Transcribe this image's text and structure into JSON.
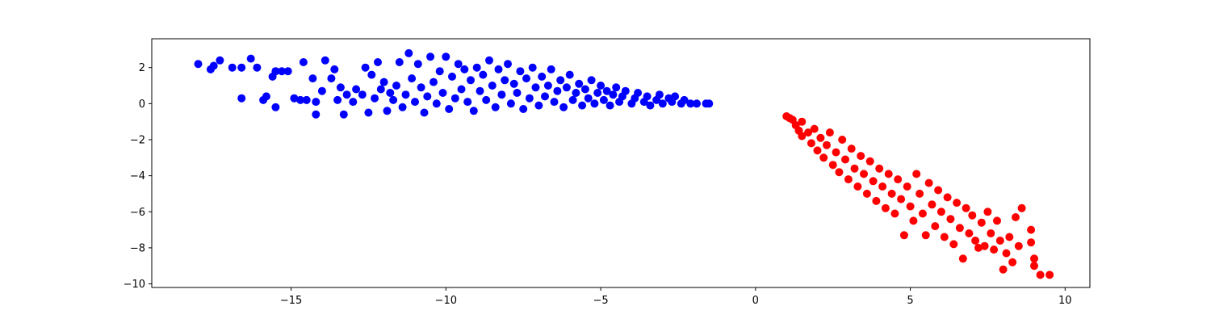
{
  "chart_data": {
    "type": "scatter",
    "title": "",
    "xlabel": "",
    "ylabel": "",
    "xlim": [
      -19.5,
      10.8
    ],
    "ylim": [
      -10.2,
      3.6
    ],
    "xticks": [
      -15,
      -10,
      -5,
      0,
      5,
      10
    ],
    "yticks": [
      2,
      0,
      -2,
      -4,
      -6,
      -8,
      -10
    ],
    "xtick_labels": [
      "−15",
      "−10",
      "−5",
      "0",
      "5",
      "10"
    ],
    "ytick_labels": [
      "2",
      "0",
      "−2",
      "−4",
      "−6",
      "−8",
      "−10"
    ],
    "grid": false,
    "legend": "none",
    "series": [
      {
        "color": "#0000ff",
        "points": [
          [
            -18.0,
            2.2
          ],
          [
            -17.6,
            1.9
          ],
          [
            -17.5,
            2.1
          ],
          [
            -17.3,
            2.4
          ],
          [
            -16.9,
            2.0
          ],
          [
            -16.6,
            2.0
          ],
          [
            -16.6,
            0.3
          ],
          [
            -16.3,
            2.5
          ],
          [
            -16.1,
            2.0
          ],
          [
            -15.9,
            0.2
          ],
          [
            -15.8,
            0.4
          ],
          [
            -15.6,
            1.5
          ],
          [
            -15.5,
            1.8
          ],
          [
            -15.5,
            -0.2
          ],
          [
            -15.3,
            1.8
          ],
          [
            -15.1,
            1.8
          ],
          [
            -14.9,
            0.3
          ],
          [
            -14.7,
            0.2
          ],
          [
            -14.6,
            2.3
          ],
          [
            -14.5,
            0.2
          ],
          [
            -14.3,
            1.4
          ],
          [
            -14.2,
            -0.6
          ],
          [
            -14.2,
            0.1
          ],
          [
            -14.0,
            0.7
          ],
          [
            -13.9,
            2.4
          ],
          [
            -13.7,
            1.4
          ],
          [
            -13.6,
            1.9
          ],
          [
            -13.5,
            0.2
          ],
          [
            -13.4,
            0.9
          ],
          [
            -13.3,
            -0.6
          ],
          [
            -13.2,
            0.5
          ],
          [
            -13.0,
            0.1
          ],
          [
            -12.9,
            0.8
          ],
          [
            -12.7,
            0.5
          ],
          [
            -12.6,
            2.0
          ],
          [
            -12.5,
            -0.5
          ],
          [
            -12.4,
            1.6
          ],
          [
            -12.3,
            0.3
          ],
          [
            -12.2,
            2.3
          ],
          [
            -12.1,
            0.8
          ],
          [
            -12.0,
            1.2
          ],
          [
            -11.9,
            -0.4
          ],
          [
            -11.8,
            0.6
          ],
          [
            -11.7,
            0.2
          ],
          [
            -11.6,
            1.0
          ],
          [
            -11.5,
            2.3
          ],
          [
            -11.4,
            -0.2
          ],
          [
            -11.3,
            0.5
          ],
          [
            -11.2,
            2.8
          ],
          [
            -11.1,
            1.4
          ],
          [
            -11.0,
            0.1
          ],
          [
            -10.9,
            2.2
          ],
          [
            -10.8,
            0.9
          ],
          [
            -10.7,
            -0.5
          ],
          [
            -10.6,
            0.4
          ],
          [
            -10.5,
            2.6
          ],
          [
            -10.4,
            1.2
          ],
          [
            -10.3,
            0.0
          ],
          [
            -10.2,
            1.8
          ],
          [
            -10.1,
            0.6
          ],
          [
            -10.0,
            2.6
          ],
          [
            -9.9,
            -0.3
          ],
          [
            -9.8,
            1.5
          ],
          [
            -9.7,
            0.3
          ],
          [
            -9.6,
            2.2
          ],
          [
            -9.5,
            0.8
          ],
          [
            -9.4,
            1.9
          ],
          [
            -9.3,
            0.1
          ],
          [
            -9.2,
            1.3
          ],
          [
            -9.1,
            -0.4
          ],
          [
            -9.0,
            2.0
          ],
          [
            -8.9,
            0.7
          ],
          [
            -8.8,
            1.6
          ],
          [
            -8.7,
            0.2
          ],
          [
            -8.6,
            2.4
          ],
          [
            -8.5,
            1.0
          ],
          [
            -8.4,
            -0.2
          ],
          [
            -8.3,
            1.9
          ],
          [
            -8.2,
            0.5
          ],
          [
            -8.1,
            1.3
          ],
          [
            -8.0,
            2.2
          ],
          [
            -7.9,
            0.0
          ],
          [
            -7.8,
            1.1
          ],
          [
            -7.7,
            0.6
          ],
          [
            -7.6,
            1.8
          ],
          [
            -7.5,
            -0.3
          ],
          [
            -7.4,
            1.4
          ],
          [
            -7.3,
            0.3
          ],
          [
            -7.2,
            2.0
          ],
          [
            -7.1,
            0.9
          ],
          [
            -7.0,
            -0.1
          ],
          [
            -6.9,
            1.5
          ],
          [
            -6.8,
            0.4
          ],
          [
            -6.7,
            1.0
          ],
          [
            -6.6,
            1.9
          ],
          [
            -6.5,
            0.1
          ],
          [
            -6.4,
            0.7
          ],
          [
            -6.3,
            1.3
          ],
          [
            -6.2,
            -0.2
          ],
          [
            -6.1,
            0.9
          ],
          [
            -6.0,
            1.6
          ],
          [
            -5.9,
            0.2
          ],
          [
            -5.8,
            0.6
          ],
          [
            -5.7,
            1.1
          ],
          [
            -5.6,
            -0.1
          ],
          [
            -5.5,
            0.8
          ],
          [
            -5.4,
            0.3
          ],
          [
            -5.3,
            1.3
          ],
          [
            -5.2,
            0.0
          ],
          [
            -5.1,
            0.6
          ],
          [
            -5.0,
            1.0
          ],
          [
            -4.9,
            0.2
          ],
          [
            -4.8,
            0.7
          ],
          [
            -4.7,
            -0.1
          ],
          [
            -4.6,
            0.5
          ],
          [
            -4.5,
            0.9
          ],
          [
            -4.4,
            0.1
          ],
          [
            -4.3,
            0.4
          ],
          [
            -4.2,
            0.7
          ],
          [
            -4.0,
            0.0
          ],
          [
            -3.9,
            0.3
          ],
          [
            -3.8,
            0.6
          ],
          [
            -3.6,
            0.1
          ],
          [
            -3.5,
            0.4
          ],
          [
            -3.4,
            -0.1
          ],
          [
            -3.2,
            0.2
          ],
          [
            -3.1,
            0.5
          ],
          [
            -3.0,
            0.0
          ],
          [
            -2.8,
            0.3
          ],
          [
            -2.7,
            0.1
          ],
          [
            -2.6,
            0.4
          ],
          [
            -2.4,
            0.0
          ],
          [
            -2.3,
            0.2
          ],
          [
            -2.1,
            0.0
          ],
          [
            -1.9,
            0.0
          ],
          [
            -1.6,
            0.0
          ],
          [
            -1.5,
            0.0
          ]
        ]
      },
      {
        "color": "#ff0000",
        "points": [
          [
            1.0,
            -0.7
          ],
          [
            1.1,
            -0.8
          ],
          [
            1.2,
            -0.9
          ],
          [
            1.3,
            -1.2
          ],
          [
            1.4,
            -1.5
          ],
          [
            1.5,
            -1.0
          ],
          [
            1.5,
            -1.8
          ],
          [
            1.7,
            -1.6
          ],
          [
            1.8,
            -2.2
          ],
          [
            1.9,
            -1.4
          ],
          [
            2.0,
            -2.6
          ],
          [
            2.1,
            -1.9
          ],
          [
            2.2,
            -3.0
          ],
          [
            2.3,
            -2.3
          ],
          [
            2.4,
            -1.6
          ],
          [
            2.5,
            -3.4
          ],
          [
            2.6,
            -2.7
          ],
          [
            2.7,
            -3.8
          ],
          [
            2.8,
            -2.0
          ],
          [
            2.9,
            -3.1
          ],
          [
            3.0,
            -4.2
          ],
          [
            3.1,
            -2.5
          ],
          [
            3.2,
            -3.6
          ],
          [
            3.3,
            -4.6
          ],
          [
            3.4,
            -2.9
          ],
          [
            3.5,
            -3.9
          ],
          [
            3.6,
            -5.0
          ],
          [
            3.7,
            -3.2
          ],
          [
            3.8,
            -4.3
          ],
          [
            3.9,
            -5.4
          ],
          [
            4.0,
            -3.6
          ],
          [
            4.1,
            -4.6
          ],
          [
            4.2,
            -5.8
          ],
          [
            4.3,
            -3.9
          ],
          [
            4.4,
            -5.0
          ],
          [
            4.5,
            -6.1
          ],
          [
            4.6,
            -4.2
          ],
          [
            4.7,
            -5.3
          ],
          [
            4.8,
            -7.3
          ],
          [
            4.9,
            -4.6
          ],
          [
            5.0,
            -5.7
          ],
          [
            5.1,
            -6.5
          ],
          [
            5.2,
            -3.9
          ],
          [
            5.3,
            -5.0
          ],
          [
            5.4,
            -6.1
          ],
          [
            5.5,
            -7.3
          ],
          [
            5.6,
            -4.4
          ],
          [
            5.7,
            -5.6
          ],
          [
            5.8,
            -6.8
          ],
          [
            5.9,
            -4.8
          ],
          [
            6.0,
            -6.0
          ],
          [
            6.1,
            -7.4
          ],
          [
            6.2,
            -5.2
          ],
          [
            6.3,
            -6.4
          ],
          [
            6.4,
            -7.8
          ],
          [
            6.5,
            -5.5
          ],
          [
            6.6,
            -6.9
          ],
          [
            6.7,
            -8.6
          ],
          [
            6.8,
            -5.8
          ],
          [
            6.9,
            -7.2
          ],
          [
            7.0,
            -6.2
          ],
          [
            7.1,
            -7.6
          ],
          [
            7.2,
            -8.0
          ],
          [
            7.3,
            -6.6
          ],
          [
            7.4,
            -7.9
          ],
          [
            7.5,
            -6.0
          ],
          [
            7.6,
            -7.2
          ],
          [
            7.7,
            -8.1
          ],
          [
            7.8,
            -6.5
          ],
          [
            7.9,
            -7.6
          ],
          [
            8.0,
            -9.2
          ],
          [
            8.1,
            -8.3
          ],
          [
            8.2,
            -7.4
          ],
          [
            8.3,
            -8.8
          ],
          [
            8.4,
            -6.3
          ],
          [
            8.5,
            -7.9
          ],
          [
            8.6,
            -5.8
          ],
          [
            8.9,
            -7.0
          ],
          [
            8.9,
            -7.7
          ],
          [
            9.0,
            -8.6
          ],
          [
            9.0,
            -9.0
          ],
          [
            9.2,
            -9.5
          ],
          [
            9.5,
            -9.5
          ]
        ]
      }
    ]
  }
}
